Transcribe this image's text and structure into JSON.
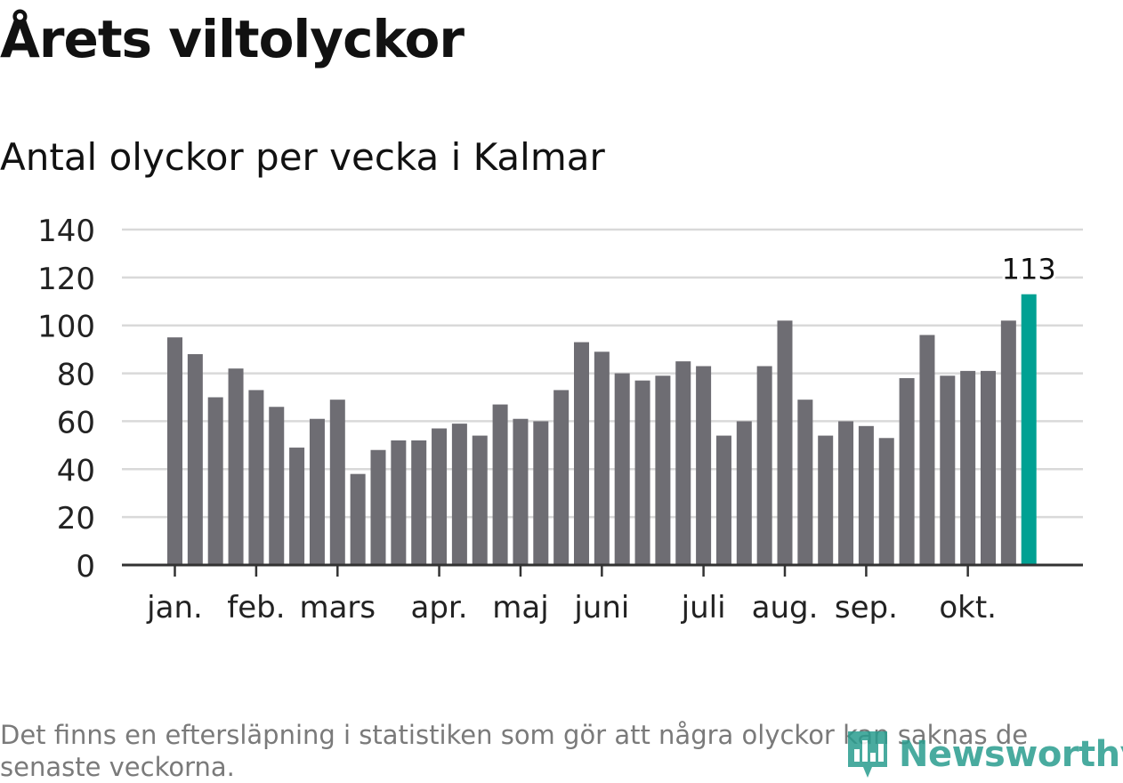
{
  "title": "Årets viltolyckor",
  "subtitle": "Antal olyckor per vecka i Kalmar",
  "footnote": "Det finns en eftersläpning i statistiken som gör att några olyckor kan saknas de senaste veckorna.",
  "logo": {
    "text": "Newsworthy",
    "icon": "chart-pin-icon"
  },
  "colors": {
    "bar": "#6e6d73",
    "highlight": "#00a193",
    "grid": "#d9d9d9",
    "axis": "#333333",
    "text": "#222222",
    "brand": "#2a9d8f"
  },
  "chart_data": {
    "type": "bar",
    "title": "Årets viltolyckor",
    "subtitle": "Antal olyckor per vecka i Kalmar",
    "xlabel": "",
    "ylabel": "",
    "ylim": [
      0,
      140
    ],
    "yticks": [
      0,
      20,
      40,
      60,
      80,
      100,
      120,
      140
    ],
    "grid": true,
    "values": [
      95,
      88,
      70,
      82,
      73,
      66,
      49,
      61,
      69,
      38,
      48,
      52,
      52,
      57,
      59,
      54,
      67,
      61,
      60,
      73,
      93,
      89,
      80,
      77,
      79,
      85,
      83,
      54,
      60,
      83,
      102,
      69,
      54,
      60,
      58,
      53,
      78,
      96,
      79,
      81,
      81,
      102,
      113
    ],
    "highlight_index": 42,
    "highlight_label": "113",
    "month_labels": [
      {
        "label": "jan.",
        "bar": 0
      },
      {
        "label": "feb.",
        "bar": 4
      },
      {
        "label": "mars",
        "bar": 8
      },
      {
        "label": "apr.",
        "bar": 13
      },
      {
        "label": "maj",
        "bar": 17
      },
      {
        "label": "juni",
        "bar": 21
      },
      {
        "label": "juli",
        "bar": 26
      },
      {
        "label": "aug.",
        "bar": 30
      },
      {
        "label": "sep.",
        "bar": 34
      },
      {
        "label": "okt.",
        "bar": 39
      }
    ]
  }
}
